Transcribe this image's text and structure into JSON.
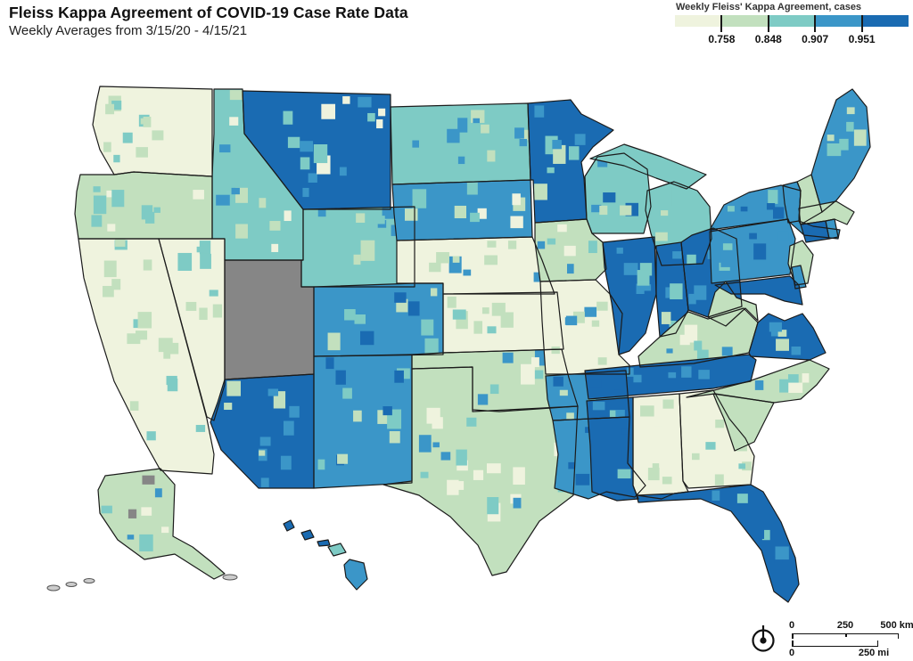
{
  "header": {
    "title": "Fleiss Kappa Agreement of COVID-19 Case Rate Data",
    "subtitle": "Weekly Averages from 3/15/20 - 4/15/21"
  },
  "legend": {
    "title": "Weekly Fleiss' Kappa Agreement, cases",
    "tick_labels": [
      "0.758",
      "0.848",
      "0.907",
      "0.951"
    ],
    "bin_colors": [
      "#eff3de",
      "#c2e0be",
      "#7ecbc5",
      "#3b96c8",
      "#1a6bb2"
    ],
    "no_data_color": "#868686"
  },
  "scale_bar": {
    "km": [
      "0",
      "250",
      "500 km"
    ],
    "mi": [
      "0",
      "250 mi"
    ]
  },
  "compass": {
    "icon": "north-arrow"
  },
  "chart_data": {
    "type": "heatmap",
    "subtype": "choropleth-map",
    "region": "United States counties (incl. Alaska and Hawaii insets)",
    "measure": "Weekly Fleiss' Kappa Agreement, cases",
    "period": "3/15/20 - 4/15/21",
    "bin_edges": [
      0.758,
      0.848,
      0.907,
      0.951
    ],
    "bin_meaning": "bin 1 = lowest agreement (pale), bin 5 = highest agreement (dark blue), 0 = no data (gray)",
    "no_data_states": [
      "Utah"
    ],
    "states": [
      {
        "id": "WA",
        "name": "Washington",
        "dominant_bin": 1,
        "secondary_bins": [
          2,
          3,
          2
        ]
      },
      {
        "id": "OR",
        "name": "Oregon",
        "dominant_bin": 2,
        "secondary_bins": [
          3,
          1,
          3
        ]
      },
      {
        "id": "CA",
        "name": "California",
        "dominant_bin": 1,
        "secondary_bins": [
          2,
          3,
          2
        ]
      },
      {
        "id": "NV",
        "name": "Nevada",
        "dominant_bin": 1,
        "secondary_bins": [
          3,
          2,
          3
        ]
      },
      {
        "id": "ID",
        "name": "Idaho",
        "dominant_bin": 3,
        "secondary_bins": [
          2,
          4,
          1,
          2
        ]
      },
      {
        "id": "MT",
        "name": "Montana",
        "dominant_bin": 5,
        "secondary_bins": [
          4,
          3,
          1
        ]
      },
      {
        "id": "WY",
        "name": "Wyoming",
        "dominant_bin": 3,
        "secondary_bins": [
          4,
          2,
          3
        ]
      },
      {
        "id": "UT",
        "name": "Utah",
        "dominant_bin": 0,
        "secondary_bins": []
      },
      {
        "id": "CO",
        "name": "Colorado",
        "dominant_bin": 4,
        "secondary_bins": [
          3,
          2,
          5
        ]
      },
      {
        "id": "AZ",
        "name": "Arizona",
        "dominant_bin": 5,
        "secondary_bins": [
          4,
          2,
          4
        ]
      },
      {
        "id": "NM",
        "name": "New Mexico",
        "dominant_bin": 4,
        "secondary_bins": [
          5,
          2,
          3
        ]
      },
      {
        "id": "ND",
        "name": "North Dakota",
        "dominant_bin": 3,
        "secondary_bins": [
          2,
          4,
          4
        ]
      },
      {
        "id": "SD",
        "name": "South Dakota",
        "dominant_bin": 4,
        "secondary_bins": [
          3,
          2,
          1
        ]
      },
      {
        "id": "NE",
        "name": "Nebraska",
        "dominant_bin": 1,
        "secondary_bins": [
          2,
          4,
          2
        ]
      },
      {
        "id": "KS",
        "name": "Kansas",
        "dominant_bin": 1,
        "secondary_bins": [
          2,
          2,
          3
        ]
      },
      {
        "id": "OK",
        "name": "Oklahoma",
        "dominant_bin": 2,
        "secondary_bins": [
          4,
          1,
          3
        ]
      },
      {
        "id": "TX",
        "name": "Texas",
        "dominant_bin": 2,
        "secondary_bins": [
          1,
          3,
          4,
          1
        ]
      },
      {
        "id": "MN",
        "name": "Minnesota",
        "dominant_bin": 5,
        "secondary_bins": [
          4,
          3,
          2
        ]
      },
      {
        "id": "IA",
        "name": "Iowa",
        "dominant_bin": 2,
        "secondary_bins": [
          1,
          4,
          3
        ]
      },
      {
        "id": "MO",
        "name": "Missouri",
        "dominant_bin": 1,
        "secondary_bins": [
          2,
          4,
          2
        ]
      },
      {
        "id": "AR",
        "name": "Arkansas",
        "dominant_bin": 4,
        "secondary_bins": [
          5,
          3,
          2
        ]
      },
      {
        "id": "LA",
        "name": "Louisiana",
        "dominant_bin": 4,
        "secondary_bins": [
          5,
          3,
          5
        ]
      },
      {
        "id": "WI",
        "name": "Wisconsin",
        "dominant_bin": 3,
        "secondary_bins": [
          4,
          5,
          2
        ]
      },
      {
        "id": "MI",
        "name": "Michigan",
        "dominant_bin": 3,
        "secondary_bins": [
          4,
          2,
          3
        ]
      },
      {
        "id": "IL",
        "name": "Illinois",
        "dominant_bin": 5,
        "secondary_bins": [
          4,
          4,
          3
        ]
      },
      {
        "id": "IN",
        "name": "Indiana",
        "dominant_bin": 5,
        "secondary_bins": [
          4,
          3,
          2
        ]
      },
      {
        "id": "OH",
        "name": "Ohio",
        "dominant_bin": 5,
        "secondary_bins": [
          4,
          4,
          3
        ]
      },
      {
        "id": "KY",
        "name": "Kentucky",
        "dominant_bin": 2,
        "secondary_bins": [
          4,
          1,
          3
        ]
      },
      {
        "id": "TN",
        "name": "Tennessee",
        "dominant_bin": 5,
        "secondary_bins": [
          4,
          5,
          4
        ]
      },
      {
        "id": "MS",
        "name": "Mississippi",
        "dominant_bin": 5,
        "secondary_bins": [
          4,
          3,
          5
        ]
      },
      {
        "id": "AL",
        "name": "Alabama",
        "dominant_bin": 1,
        "secondary_bins": [
          2,
          1,
          2
        ]
      },
      {
        "id": "GA",
        "name": "Georgia",
        "dominant_bin": 1,
        "secondary_bins": [
          2,
          3,
          2
        ]
      },
      {
        "id": "FL",
        "name": "Florida",
        "dominant_bin": 5,
        "secondary_bins": [
          4,
          5,
          3
        ]
      },
      {
        "id": "SC",
        "name": "South Carolina",
        "dominant_bin": 2,
        "secondary_bins": [
          3,
          4,
          2
        ]
      },
      {
        "id": "NC",
        "name": "North Carolina",
        "dominant_bin": 2,
        "secondary_bins": [
          3,
          1,
          4
        ]
      },
      {
        "id": "VA",
        "name": "Virginia",
        "dominant_bin": 5,
        "secondary_bins": [
          4,
          2,
          4
        ]
      },
      {
        "id": "WV",
        "name": "West Virginia",
        "dominant_bin": 2,
        "secondary_bins": [
          3,
          1,
          2
        ]
      },
      {
        "id": "PA",
        "name": "Pennsylvania",
        "dominant_bin": 4,
        "secondary_bins": [
          5,
          3,
          4
        ]
      },
      {
        "id": "NY",
        "name": "New York",
        "dominant_bin": 4,
        "secondary_bins": [
          5,
          3,
          5
        ]
      },
      {
        "id": "VT",
        "name": "Vermont",
        "dominant_bin": 4,
        "secondary_bins": [
          5
        ]
      },
      {
        "id": "NH",
        "name": "New Hampshire",
        "dominant_bin": 2,
        "secondary_bins": [
          4
        ]
      },
      {
        "id": "ME",
        "name": "Maine",
        "dominant_bin": 4,
        "secondary_bins": [
          3,
          2
        ]
      },
      {
        "id": "MA",
        "name": "Massachusetts",
        "dominant_bin": 2,
        "secondary_bins": [
          4
        ]
      },
      {
        "id": "RI",
        "name": "Rhode Island",
        "dominant_bin": 4,
        "secondary_bins": []
      },
      {
        "id": "CT",
        "name": "Connecticut",
        "dominant_bin": 5,
        "secondary_bins": []
      },
      {
        "id": "NJ",
        "name": "New Jersey",
        "dominant_bin": 2,
        "secondary_bins": [
          1
        ]
      },
      {
        "id": "DE",
        "name": "Delaware",
        "dominant_bin": 4,
        "secondary_bins": []
      },
      {
        "id": "MD",
        "name": "Maryland",
        "dominant_bin": 5,
        "secondary_bins": [
          4
        ]
      },
      {
        "id": "AK",
        "name": "Alaska",
        "dominant_bin": 2,
        "secondary_bins": [
          3,
          1,
          4,
          0
        ]
      },
      {
        "id": "HI",
        "name": "Hawaii",
        "dominant_bin": 4,
        "secondary_bins": [
          5,
          3
        ]
      }
    ]
  }
}
